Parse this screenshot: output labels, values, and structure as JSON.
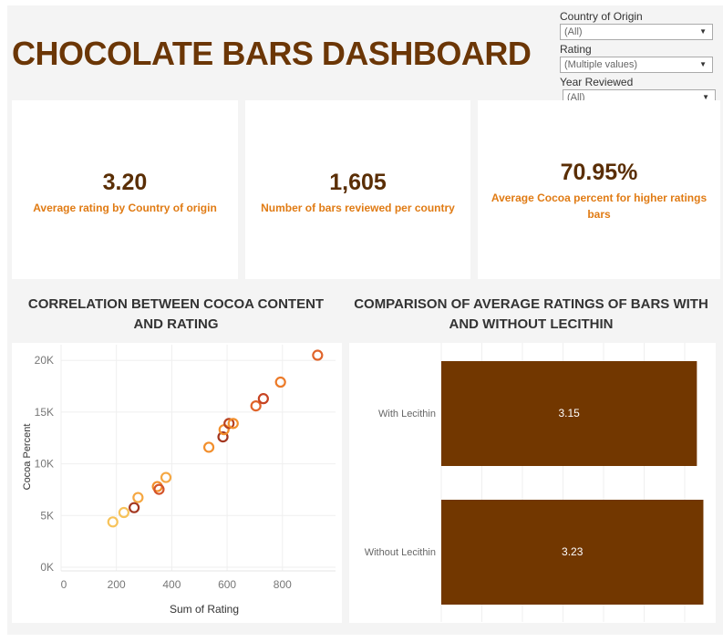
{
  "header": {
    "title": "CHOCOLATE BARS DASHBOARD"
  },
  "filters": [
    {
      "label": "Country of Origin",
      "value": "(All)"
    },
    {
      "label": "Rating",
      "value": "(Multiple values)"
    },
    {
      "label": "Year Reviewed",
      "value": "(All)"
    }
  ],
  "kpis": [
    {
      "value": "3.20",
      "label": "Average rating by Country of origin"
    },
    {
      "value": "1,605",
      "label": "Number of bars reviewed per country"
    },
    {
      "value": "70.95%",
      "label": "Average Cocoa percent for higher ratings bars"
    }
  ],
  "chart_data": [
    {
      "type": "scatter",
      "title": "CORRELATION BETWEEN COCOA CONTENT AND RATING",
      "xlabel": "Sum of Rating",
      "ylabel": "Cocoa Percent",
      "xlim": [
        0,
        950
      ],
      "ylim": [
        -1000,
        21500
      ],
      "xticks": [
        "0",
        "200",
        "400",
        "600",
        "800"
      ],
      "yticks": [
        "0K",
        "5K",
        "10K",
        "15K",
        "20K"
      ],
      "grid": true,
      "marker": "open-circle",
      "points": [
        {
          "x": 187,
          "y": 4380,
          "color": "#f7c35a"
        },
        {
          "x": 227,
          "y": 5290,
          "color": "#f7c35a"
        },
        {
          "x": 264,
          "y": 5760,
          "color": "#a3361f"
        },
        {
          "x": 278,
          "y": 6740,
          "color": "#f5a742"
        },
        {
          "x": 348,
          "y": 7800,
          "color": "#f28e2b"
        },
        {
          "x": 354,
          "y": 7530,
          "color": "#d4542a"
        },
        {
          "x": 379,
          "y": 8680,
          "color": "#f5a742"
        },
        {
          "x": 534,
          "y": 11600,
          "color": "#f28e2b"
        },
        {
          "x": 585,
          "y": 12600,
          "color": "#a3361f"
        },
        {
          "x": 589,
          "y": 13300,
          "color": "#f28e2b"
        },
        {
          "x": 607,
          "y": 13900,
          "color": "#b8401f"
        },
        {
          "x": 622,
          "y": 13900,
          "color": "#f28e2b"
        },
        {
          "x": 704,
          "y": 15600,
          "color": "#e0642a"
        },
        {
          "x": 731,
          "y": 16300,
          "color": "#c74423"
        },
        {
          "x": 793,
          "y": 17900,
          "color": "#ec7a28"
        },
        {
          "x": 927,
          "y": 20500,
          "color": "#e0642a"
        }
      ]
    },
    {
      "type": "bar",
      "orientation": "horizontal",
      "title": "COMPARISON OF AVERAGE RATINGS OF BARS WITH AND WITHOUT LECITHIN",
      "categories": [
        "With Lecithin",
        "Without Lecithin"
      ],
      "values": [
        3.15,
        3.23
      ],
      "data_labels": [
        "3.15",
        "3.23"
      ],
      "xlim": [
        0,
        3.38
      ],
      "grid": true,
      "color": "#723700"
    }
  ]
}
